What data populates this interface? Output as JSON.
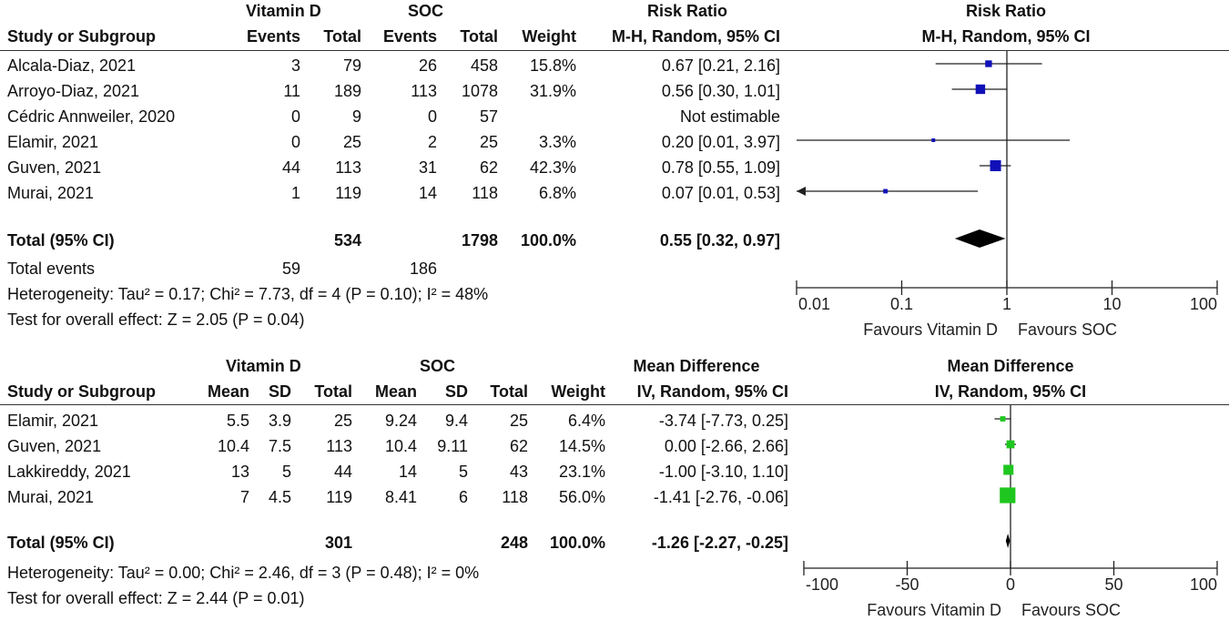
{
  "colors": {
    "rr_marker": "#1010b8",
    "md_marker": "#1fc61f",
    "pooled": "#000000",
    "line": "#222222"
  },
  "chart_data": [
    {
      "type": "forest",
      "headers": {
        "study": "Study or Subgroup",
        "group1": "Vitamin D",
        "group2": "SOC",
        "events": "Events",
        "total": "Total",
        "weight": "Weight",
        "effect_title": "Risk Ratio",
        "effect_method": "M-H, Random, 95% CI"
      },
      "studies": [
        {
          "name": "Alcala-Diaz, 2021",
          "e1": "3",
          "n1": "79",
          "e2": "26",
          "n2": "458",
          "weight": "15.8%",
          "ci_text": "0.67 [0.21, 2.16]",
          "est": 0.67,
          "lo": 0.21,
          "hi": 2.16,
          "w": 15.8
        },
        {
          "name": "Arroyo-Diaz, 2021",
          "e1": "11",
          "n1": "189",
          "e2": "113",
          "n2": "1078",
          "weight": "31.9%",
          "ci_text": "0.56 [0.30, 1.01]",
          "est": 0.56,
          "lo": 0.3,
          "hi": 1.01,
          "w": 31.9
        },
        {
          "name": "Cédric Annweiler, 2020",
          "e1": "0",
          "n1": "9",
          "e2": "0",
          "n2": "57",
          "weight": "",
          "ci_text": "Not estimable",
          "est": null,
          "lo": null,
          "hi": null,
          "w": 0
        },
        {
          "name": "Elamir, 2021",
          "e1": "0",
          "n1": "25",
          "e2": "2",
          "n2": "25",
          "weight": "3.3%",
          "ci_text": "0.20 [0.01, 3.97]",
          "est": 0.2,
          "lo": 0.01,
          "hi": 3.97,
          "w": 3.3
        },
        {
          "name": "Guven, 2021",
          "e1": "44",
          "n1": "113",
          "e2": "31",
          "n2": "62",
          "weight": "42.3%",
          "ci_text": "0.78 [0.55, 1.09]",
          "est": 0.78,
          "lo": 0.55,
          "hi": 1.09,
          "w": 42.3
        },
        {
          "name": "Murai, 2021",
          "e1": "1",
          "n1": "119",
          "e2": "14",
          "n2": "118",
          "weight": "6.8%",
          "ci_text": "0.07 [0.01, 0.53]",
          "est": 0.07,
          "lo": 0.01,
          "hi": 0.53,
          "w": 6.8,
          "arrow_left": true
        }
      ],
      "total": {
        "label": "Total (95% CI)",
        "n1": "534",
        "n2": "1798",
        "weight": "100.0%",
        "ci_text": "0.55 [0.32, 0.97]",
        "est": 0.55,
        "lo": 0.32,
        "hi": 0.97
      },
      "total_events": {
        "label": "Total events",
        "e1": "59",
        "e2": "186"
      },
      "heterogeneity": "Heterogeneity: Tau² = 0.17; Chi² = 7.73, df = 4 (P = 0.10); I² = 48%",
      "overall_effect": "Test for overall effect: Z = 2.05 (P = 0.04)",
      "axis": {
        "scale": "log",
        "ticks": [
          0.01,
          0.1,
          1,
          10,
          100
        ],
        "tick_labels": [
          "0.01",
          "0.1",
          "1",
          "10",
          "100"
        ],
        "null_value": 1,
        "favours_left": "Favours Vitamin D",
        "favours_right": "Favours SOC"
      }
    },
    {
      "type": "forest",
      "headers": {
        "study": "Study or Subgroup",
        "group1": "Vitamin D",
        "group2": "SOC",
        "mean": "Mean",
        "sd": "SD",
        "total": "Total",
        "weight": "Weight",
        "effect_title": "Mean Difference",
        "effect_method": "IV, Random, 95% CI"
      },
      "studies": [
        {
          "name": "Elamir, 2021",
          "m1": "5.5",
          "sd1": "3.9",
          "n1": "25",
          "m2": "9.24",
          "sd2": "9.4",
          "n2": "25",
          "weight": "6.4%",
          "ci_text": "-3.74 [-7.73, 0.25]",
          "est": -3.74,
          "lo": -7.73,
          "hi": 0.25,
          "w": 6.4
        },
        {
          "name": "Guven, 2021",
          "m1": "10.4",
          "sd1": "7.5",
          "n1": "113",
          "m2": "10.4",
          "sd2": "9.11",
          "n2": "62",
          "weight": "14.5%",
          "ci_text": "0.00 [-2.66, 2.66]",
          "est": 0.0,
          "lo": -2.66,
          "hi": 2.66,
          "w": 14.5
        },
        {
          "name": "Lakkireddy, 2021",
          "m1": "13",
          "sd1": "5",
          "n1": "44",
          "m2": "14",
          "sd2": "5",
          "n2": "43",
          "weight": "23.1%",
          "ci_text": "-1.00 [-3.10, 1.10]",
          "est": -1.0,
          "lo": -3.1,
          "hi": 1.1,
          "w": 23.1
        },
        {
          "name": "Murai, 2021",
          "m1": "7",
          "sd1": "4.5",
          "n1": "119",
          "m2": "8.41",
          "sd2": "6",
          "n2": "118",
          "weight": "56.0%",
          "ci_text": "-1.41 [-2.76, -0.06]",
          "est": -1.41,
          "lo": -2.76,
          "hi": -0.06,
          "w": 56.0
        }
      ],
      "total": {
        "label": "Total (95% CI)",
        "n1": "301",
        "n2": "248",
        "weight": "100.0%",
        "ci_text": "-1.26 [-2.27, -0.25]",
        "est": -1.26,
        "lo": -2.27,
        "hi": -0.25
      },
      "heterogeneity": "Heterogeneity: Tau² = 0.00; Chi² = 2.46, df = 3 (P = 0.48); I² = 0%",
      "overall_effect": "Test for overall effect: Z = 2.44 (P = 0.01)",
      "axis": {
        "scale": "linear",
        "ticks": [
          -100,
          -50,
          0,
          50,
          100
        ],
        "tick_labels": [
          "-100",
          "-50",
          "0",
          "50",
          "100"
        ],
        "null_value": 0,
        "favours_left": "Favours Vitamin D",
        "favours_right": "Favours SOC"
      }
    }
  ]
}
